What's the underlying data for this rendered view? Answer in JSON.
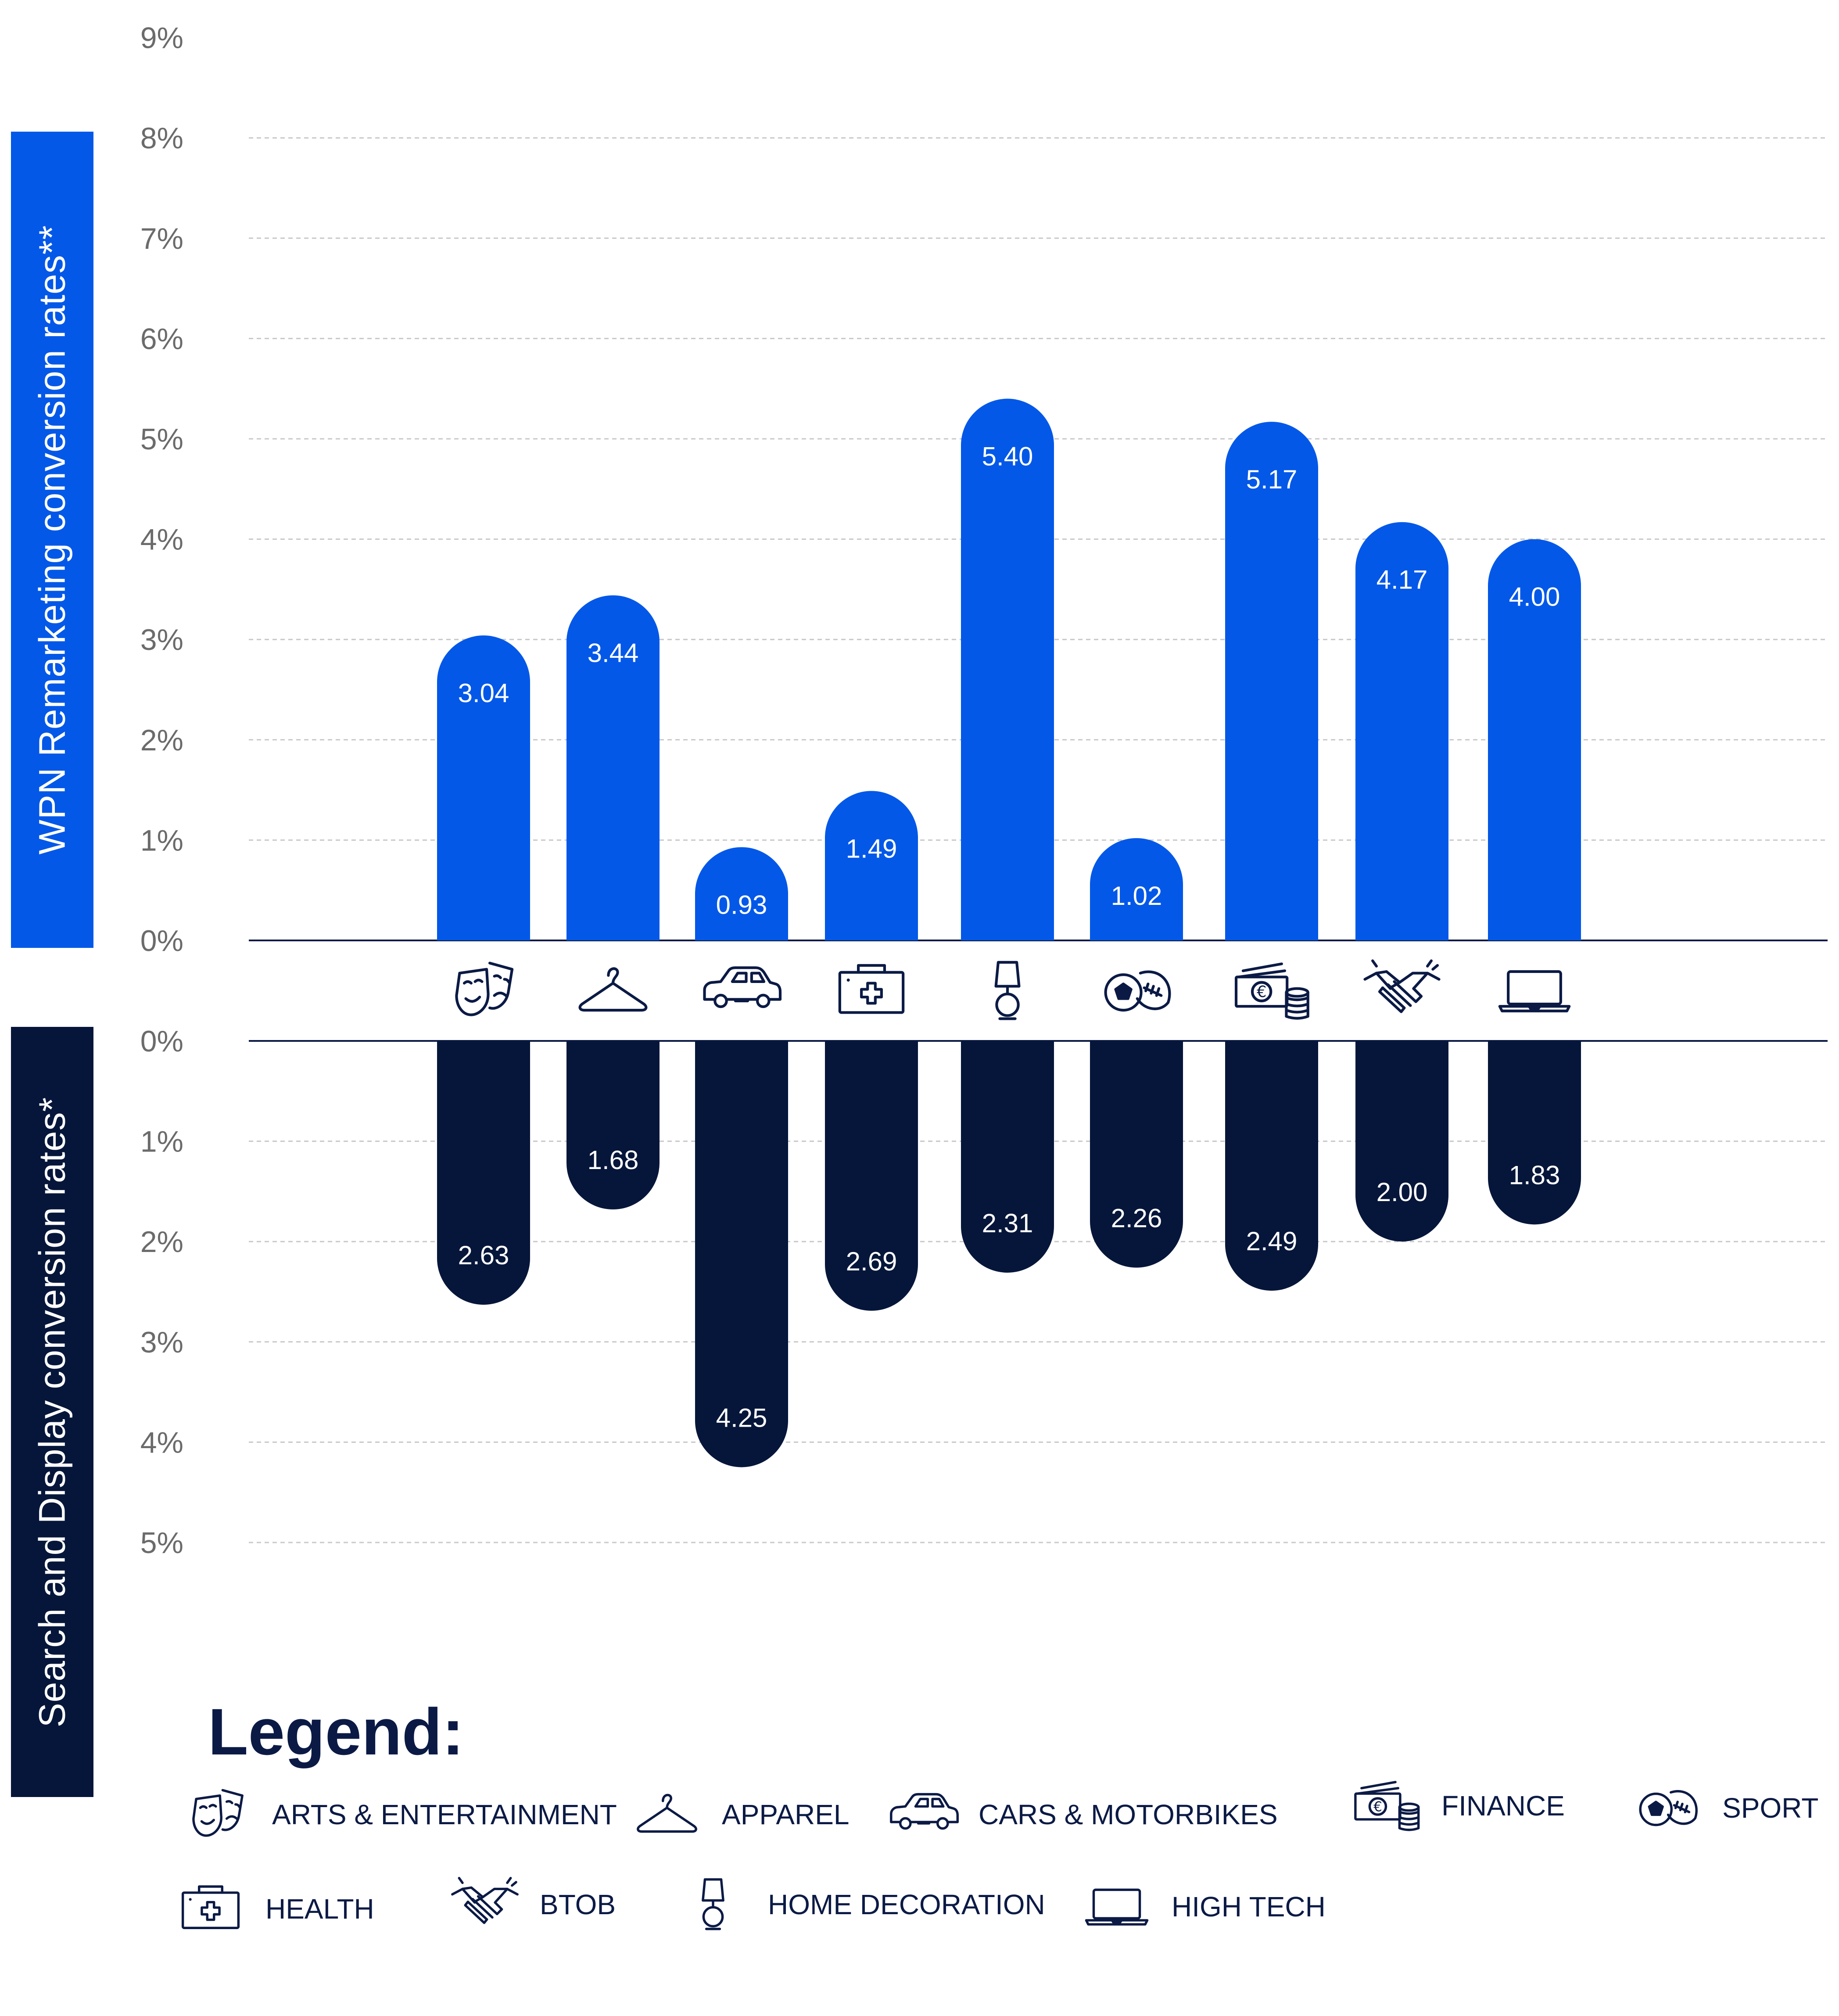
{
  "chart_data": {
    "type": "bar",
    "categories": [
      "ARTS & ENTERTAINMENT",
      "APPAREL",
      "CARS & MOTORBIKES",
      "HEALTH",
      "HOME DECORATION",
      "SPORT",
      "FINANCE",
      "BTOB",
      "HIGH TECH"
    ],
    "category_icons": [
      "theater-masks-icon",
      "hanger-icon",
      "car-icon",
      "first-aid-kit-icon",
      "lamp-icon",
      "sport-balls-icon",
      "money-coins-icon",
      "handshake-icon",
      "laptop-icon"
    ],
    "series": [
      {
        "name": "WPN Remarketing conversion rates**",
        "values": [
          3.04,
          3.44,
          0.93,
          1.49,
          5.4,
          1.02,
          5.17,
          4.17,
          4.0
        ],
        "color": "#0358e8"
      },
      {
        "name": "Search and Display conversion rates*",
        "values": [
          2.63,
          1.68,
          4.25,
          2.69,
          2.31,
          2.26,
          2.49,
          2.0,
          1.83
        ],
        "color": "#06163a"
      }
    ],
    "top_ticks": [
      "0%",
      "1%",
      "2%",
      "3%",
      "4%",
      "5%",
      "6%",
      "7%",
      "8%",
      "9%"
    ],
    "bottom_ticks": [
      "0%",
      "1%",
      "2%",
      "3%",
      "4%",
      "5%"
    ],
    "top_ylim": [
      0,
      9
    ],
    "bottom_ylim": [
      0,
      5
    ],
    "grid": true
  },
  "axis_labels": {
    "top": "WPN Remarketing conversion rates**",
    "bottom": "Search and Display conversion rates*"
  },
  "legend": {
    "title": "Legend:",
    "items": [
      {
        "label": "ARTS & ENTERTAINMENT",
        "icon": "theater-masks-icon"
      },
      {
        "label": "APPAREL",
        "icon": "hanger-icon"
      },
      {
        "label": "CARS & MOTORBIKES",
        "icon": "car-icon"
      },
      {
        "label": "FINANCE",
        "icon": "money-coins-icon"
      },
      {
        "label": "SPORT",
        "icon": "sport-balls-icon"
      },
      {
        "label": "HEALTH",
        "icon": "first-aid-kit-icon"
      },
      {
        "label": "BTOB",
        "icon": "handshake-icon"
      },
      {
        "label": "HOME DECORATION",
        "icon": "lamp-icon"
      },
      {
        "label": "HIGH TECH",
        "icon": "laptop-icon"
      }
    ]
  },
  "colors": {
    "remarketing": "#0358e8",
    "search_display": "#06163a",
    "text_dark": "#0b1a45",
    "tick_text": "#6b6b6b",
    "grid": "#c8c8c8"
  }
}
